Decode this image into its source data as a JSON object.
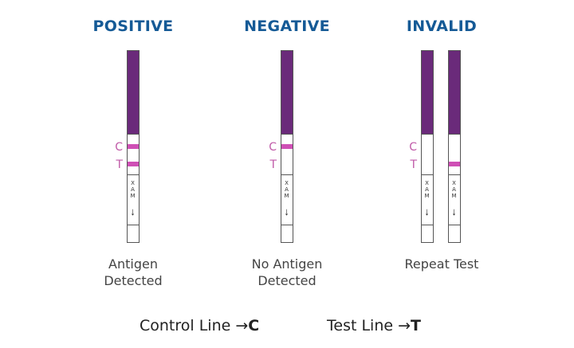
{
  "columns": [
    {
      "title": "POSITIVE",
      "result_line1": "Antigen",
      "result_line2": "Detected"
    },
    {
      "title": "NEGATIVE",
      "result_line1": "No Antigen",
      "result_line2": "Detected"
    },
    {
      "title": "INVALID",
      "result_line1": "Repeat Test",
      "result_line2": ""
    }
  ],
  "labels": {
    "c": "C",
    "t": "T",
    "max": "MAX",
    "arrow": "↓"
  },
  "legend": {
    "control_text": "Control Line",
    "control_letter": "C",
    "test_text": "Test Line",
    "test_letter": "T",
    "arrow": "→"
  },
  "colors": {
    "title": "#155a96",
    "strip_top": "#6a2a7a",
    "line": "#cf4fb5",
    "label": "#c05aa8"
  }
}
